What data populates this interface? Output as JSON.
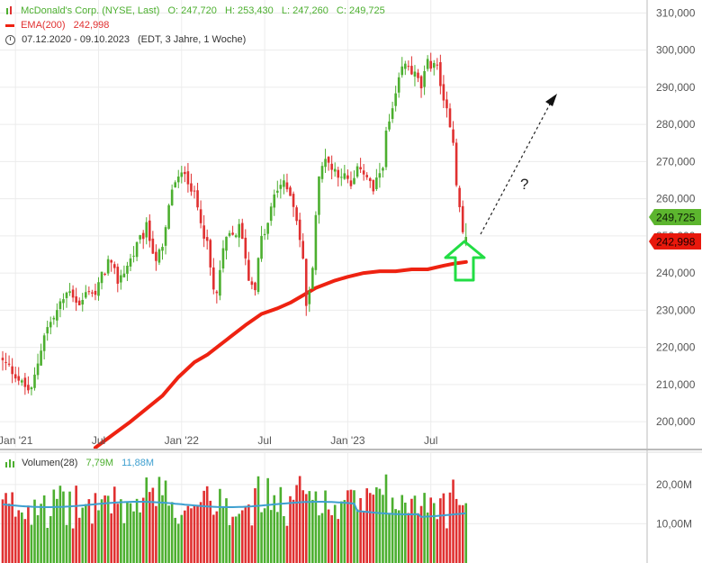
{
  "legend": {
    "series_name": "McDonald's Corp. (NYSE, Last)",
    "open": "O: 247,720",
    "high": "H: 253,430",
    "low": "L: 247,260",
    "close": "C: 249,725",
    "ema_label": "EMA(200)",
    "ema_value": "242,998",
    "period": "07.12.2020 - 09.10.2023",
    "period_detail": "(EDT, 3 Jahre, 1 Woche)"
  },
  "volume_legend": {
    "label": "Volumen(28)",
    "value1": "7,79M",
    "value2": "11,88M"
  },
  "badges": {
    "last_price": "249,725",
    "ema_price": "242,998"
  },
  "annotation": {
    "question": "?"
  },
  "colors": {
    "up": "#4caf2f",
    "down": "#e03030",
    "ema": "#ee2211",
    "volume_avg": "#3fa0d0",
    "highlight_arrow": "#22dd44",
    "price_badge": "#5cb52e",
    "ema_badge": "#e8180c"
  },
  "chart_data": {
    "type": "candlestick",
    "price_axis": {
      "ylim": [
        193000,
        313500
      ],
      "ticks": [
        200000,
        210000,
        220000,
        230000,
        240000,
        250000,
        260000,
        270000,
        280000,
        290000,
        300000,
        310000
      ],
      "tick_labels": [
        "200,000",
        "210,000",
        "220,000",
        "230,000",
        "240,000",
        "250,000",
        "260,000",
        "270,000",
        "280,000",
        "290,000",
        "300,000",
        "310,000"
      ]
    },
    "x_axis": {
      "weeks": 153,
      "tick_weeks": [
        4,
        30,
        56,
        82,
        108,
        134
      ],
      "tick_labels": [
        "Jan '21",
        "Jul",
        "Jan '22",
        "Jul",
        "Jan '23",
        "Jul"
      ]
    },
    "volume_axis": {
      "ylim": [
        0,
        28000000
      ],
      "ticks": [
        10000000,
        20000000
      ],
      "tick_labels": [
        "10,00M",
        "20,00M"
      ]
    },
    "anchors": [
      [
        0,
        216000
      ],
      [
        4,
        213000
      ],
      [
        6,
        210000
      ],
      [
        9,
        208000
      ],
      [
        11,
        216000
      ],
      [
        13,
        224000
      ],
      [
        16,
        228000
      ],
      [
        19,
        233000
      ],
      [
        21,
        236000
      ],
      [
        24,
        231000
      ],
      [
        27,
        236000
      ],
      [
        29,
        234000
      ],
      [
        31,
        239000
      ],
      [
        33,
        243000
      ],
      [
        36,
        238000
      ],
      [
        39,
        242000
      ],
      [
        42,
        247000
      ],
      [
        45,
        252000
      ],
      [
        48,
        244000
      ],
      [
        50,
        246000
      ],
      [
        53,
        263000
      ],
      [
        56,
        266000
      ],
      [
        57,
        268000
      ],
      [
        59,
        263000
      ],
      [
        62,
        255000
      ],
      [
        64,
        247000
      ],
      [
        66,
        235000
      ],
      [
        67,
        234000
      ],
      [
        68,
        241000
      ],
      [
        70,
        249000
      ],
      [
        72,
        250000
      ],
      [
        74,
        252000
      ],
      [
        76,
        245000
      ],
      [
        77,
        238000
      ],
      [
        79,
        237000
      ],
      [
        81,
        249000
      ],
      [
        83,
        253000
      ],
      [
        85,
        261000
      ],
      [
        87,
        264000
      ],
      [
        90,
        262000
      ],
      [
        92,
        255000
      ],
      [
        94,
        243000
      ],
      [
        95,
        232000
      ],
      [
        96,
        234000
      ],
      [
        97,
        243000
      ],
      [
        98,
        256000
      ],
      [
        99,
        265000
      ],
      [
        101,
        272000
      ],
      [
        103,
        268000
      ],
      [
        106,
        267000
      ],
      [
        109,
        263000
      ],
      [
        112,
        269000
      ],
      [
        114,
        266000
      ],
      [
        116,
        262000
      ],
      [
        117,
        264000
      ],
      [
        119,
        270000
      ],
      [
        120,
        277000
      ],
      [
        123,
        287000
      ],
      [
        125,
        295000
      ],
      [
        127,
        296000
      ],
      [
        129,
        293000
      ],
      [
        131,
        290000
      ],
      [
        133,
        296000
      ],
      [
        135,
        297000
      ],
      [
        137,
        292000
      ],
      [
        138,
        285000
      ],
      [
        140,
        281000
      ],
      [
        141,
        276000
      ],
      [
        142,
        265000
      ],
      [
        143,
        257000
      ],
      [
        144,
        251000
      ],
      [
        145,
        249725
      ]
    ],
    "last_candle": {
      "open": 247720,
      "high": 253430,
      "low": 247260,
      "close": 249725
    },
    "ema200": {
      "name": "EMA(200)",
      "points": [
        [
          29,
          193000
        ],
        [
          40,
          200000
        ],
        [
          50,
          207000
        ],
        [
          55,
          212000
        ],
        [
          60,
          216000
        ],
        [
          64,
          218000
        ],
        [
          70,
          222000
        ],
        [
          76,
          226000
        ],
        [
          81,
          229000
        ],
        [
          86,
          230500
        ],
        [
          90,
          232000
        ],
        [
          98,
          236000
        ],
        [
          104,
          238000
        ],
        [
          108,
          239000
        ],
        [
          113,
          240000
        ],
        [
          118,
          240500
        ],
        [
          123,
          240500
        ],
        [
          128,
          241000
        ],
        [
          133,
          241000
        ],
        [
          138,
          242000
        ],
        [
          141,
          242500
        ],
        [
          145,
          242998
        ]
      ]
    },
    "volume": {
      "name": "Volumen(28)",
      "last_value": "7,79M",
      "avg_value": "11,88M"
    }
  }
}
